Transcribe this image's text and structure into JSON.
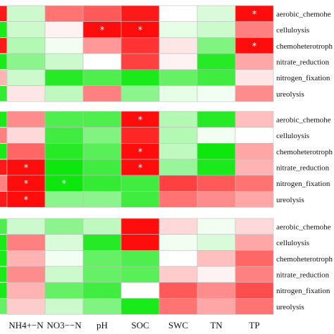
{
  "chart_data": {
    "type": "heatmap",
    "columns": [
      "NH4+−N",
      "NO3−−N",
      "pH",
      "SOC",
      "SWC",
      "TN",
      "TP"
    ],
    "panels": [
      {
        "rows": [
          "aerobic_chemohe",
          "celluloysis",
          "chemoheterotroph",
          "nitrate_reduction",
          "nitrogen_fixation",
          "ureolysis"
        ],
        "edge_values": [
          0.9,
          -0.9,
          0.9,
          -0.9,
          0.3,
          -0.8
        ],
        "values": [
          [
            -0.2,
            0.55,
            0.65,
            0.9,
            0.0,
            -0.15,
            0.95
          ],
          [
            -0.2,
            0.05,
            0.95,
            0.95,
            -0.1,
            -0.2,
            0.5
          ],
          [
            -0.3,
            -0.05,
            0.4,
            0.8,
            0.1,
            -0.5,
            0.95
          ],
          [
            -0.45,
            -0.2,
            0.0,
            0.75,
            0.05,
            -0.85,
            0.35
          ],
          [
            -0.2,
            -0.85,
            -0.7,
            -0.9,
            -0.6,
            -0.75,
            0.1
          ],
          [
            0.1,
            -0.25,
            0.5,
            -0.45,
            -0.1,
            -0.05,
            0.45
          ]
        ],
        "significant": [
          [
            0,
            6
          ],
          [
            1,
            2
          ],
          [
            1,
            3
          ],
          [
            2,
            6
          ]
        ]
      },
      {
        "rows": [
          "aerobic_chemohe",
          "celluloysis",
          "chemoheterotroph",
          "nitrate_reduction",
          "nitrogen_fixation",
          "ureolysis"
        ],
        "edge_values": [
          -0.9,
          0.5,
          -0.9,
          0.9,
          0.5,
          0.9
        ],
        "values": [
          [
            0.45,
            -0.7,
            -0.7,
            0.95,
            -0.3,
            -0.85,
            0.25
          ],
          [
            0.15,
            -0.75,
            -0.5,
            0.85,
            -0.3,
            -0.05,
            0.0
          ],
          [
            0.6,
            -0.85,
            -0.65,
            0.95,
            -0.25,
            -0.95,
            0.35
          ],
          [
            0.95,
            -0.95,
            -0.75,
            0.95,
            -0.4,
            -0.9,
            0.3
          ],
          [
            0.95,
            -0.95,
            -0.8,
            -0.75,
            0.75,
            0.65,
            0.55
          ],
          [
            0.95,
            -0.45,
            -0.45,
            -0.75,
            0.55,
            0.45,
            0.35
          ]
        ],
        "significant": [
          [
            0,
            3
          ],
          [
            2,
            3
          ],
          [
            3,
            0
          ],
          [
            3,
            3
          ],
          [
            4,
            0
          ],
          [
            4,
            1
          ],
          [
            5,
            0
          ]
        ]
      },
      {
        "rows": [
          "aerobic_chemohe",
          "celluloysis",
          "chemoheterotroph",
          "nitrate_reduction",
          "nitrogen_fixation",
          "ureolysis"
        ],
        "edge_values": [
          -0.7,
          -0.9,
          -0.9,
          -0.9,
          -0.9,
          -0.6
        ],
        "values": [
          [
            -0.2,
            -0.45,
            -0.25,
            0.95,
            0.15,
            -0.05,
            0.15
          ],
          [
            0.5,
            -0.15,
            -0.85,
            0.95,
            -0.05,
            -0.15,
            0.35
          ],
          [
            0.3,
            -0.05,
            -0.6,
            -0.7,
            0.0,
            0.25,
            0.6
          ],
          [
            0.45,
            -0.2,
            -0.6,
            -0.65,
            0.2,
            0.05,
            0.5
          ],
          [
            0.3,
            -0.6,
            -0.75,
            0.0,
            0.65,
            0.45,
            0.7
          ],
          [
            0.2,
            -0.2,
            -0.5,
            -0.9,
            0.55,
            0.35,
            0.55
          ]
        ],
        "significant": []
      }
    ],
    "significance_marker": "*",
    "colors": {
      "positive": "#ff0000",
      "zero": "#ffffff",
      "negative": "#00e600"
    },
    "value_range": [
      -1,
      1
    ],
    "grid": true,
    "legend": "none"
  }
}
